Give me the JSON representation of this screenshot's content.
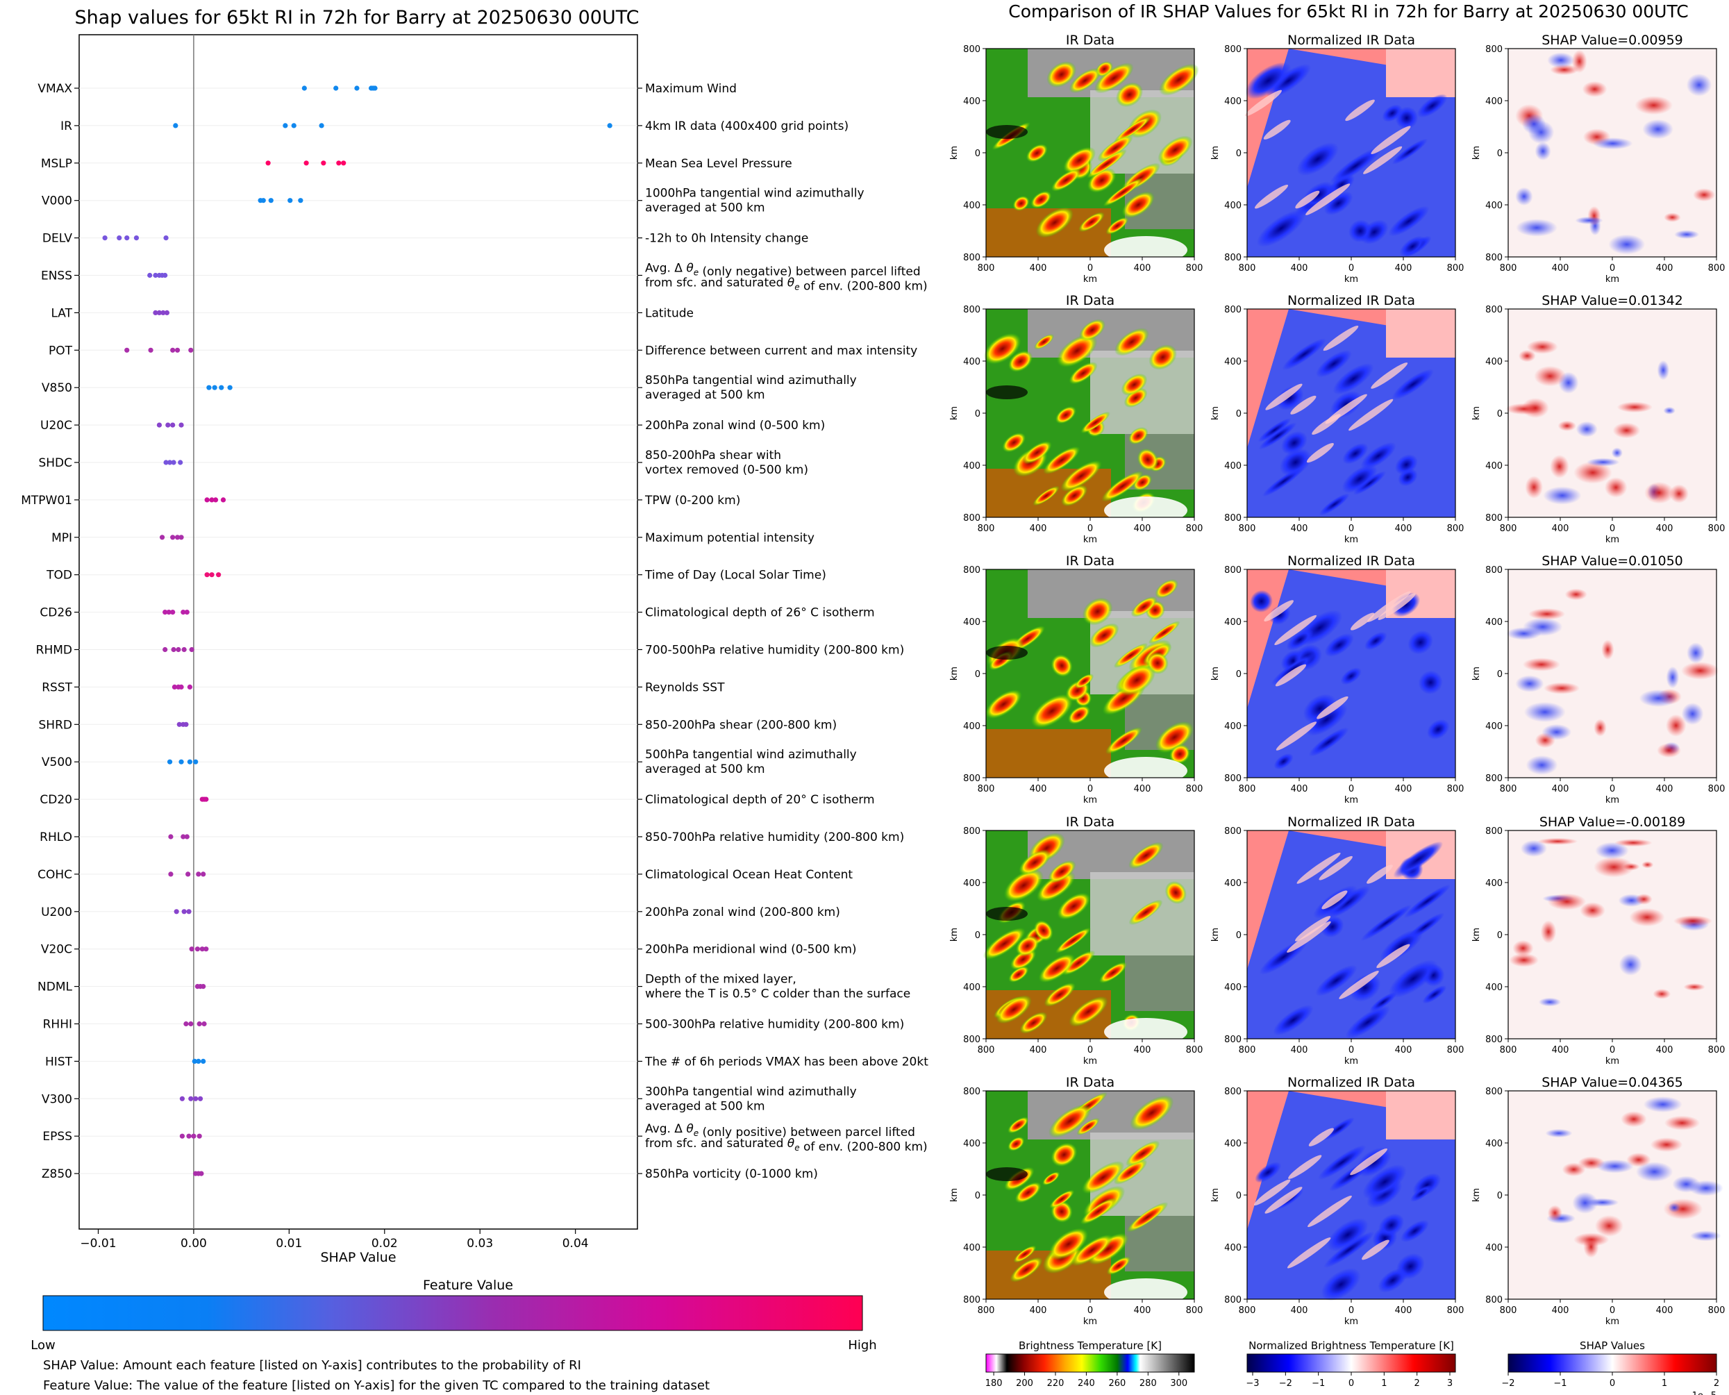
{
  "chart_data": [
    {
      "type": "scatter",
      "title": "Shap values for 65kt RI in 72h for Barry at 20250630 00UTC",
      "xlabel": "SHAP Value",
      "ylabel": "",
      "xlim": [
        -0.012,
        0.0465
      ],
      "x_ticks": [
        "−0.01",
        "0.00",
        "0.01",
        "0.02",
        "0.03",
        "0.04"
      ],
      "x_tick_values": [
        -0.01,
        0.0,
        0.01,
        0.02,
        0.03,
        0.04
      ],
      "features": [
        {
          "name": "VMAX",
          "desc": [
            "Maximum Wind"
          ],
          "color": "#1188ee",
          "values": [
            0.0116,
            0.0149,
            0.0171,
            0.0186,
            0.0188,
            0.019
          ]
        },
        {
          "name": "IR",
          "desc": [
            "4km IR data (400x400 grid points)"
          ],
          "color": "#1188ee",
          "values": [
            -0.0019,
            0.0096,
            0.0105,
            0.0134,
            0.0436
          ]
        },
        {
          "name": "MSLP",
          "desc": [
            "Mean Sea Level Pressure"
          ],
          "color": "#ff0066",
          "values": [
            0.0078,
            0.0118,
            0.0136,
            0.0152,
            0.0157
          ]
        },
        {
          "name": "V000",
          "desc": [
            "1000hPa tangential wind azimuthally",
            "averaged at 500 km"
          ],
          "color": "#1188ee",
          "values": [
            0.007,
            0.0073,
            0.0081,
            0.0101,
            0.0112
          ]
        },
        {
          "name": "DELV",
          "desc": [
            "-12h to 0h Intensity change"
          ],
          "color": "#7755dd",
          "values": [
            -0.0093,
            -0.0078,
            -0.007,
            -0.006,
            -0.0029
          ]
        },
        {
          "name": "ENSS",
          "desc": [
            "Avg. Δ θe (only negative) between parcel lifted",
            "from sfc. and saturated θe of env. (200-800 km)"
          ],
          "color": "#7755dd",
          "values": [
            -0.0046,
            -0.004,
            -0.0036,
            -0.0033,
            -0.003
          ]
        },
        {
          "name": "LAT",
          "desc": [
            "Latitude"
          ],
          "color": "#8844cc",
          "values": [
            -0.004,
            -0.0036,
            -0.0032,
            -0.0028
          ]
        },
        {
          "name": "POT",
          "desc": [
            "Difference between current and max intensity"
          ],
          "color": "#aa2faa",
          "values": [
            -0.007,
            -0.0045,
            -0.0022,
            -0.0017,
            -0.0003
          ]
        },
        {
          "name": "V850",
          "desc": [
            "850hPa tangential wind azimuthally",
            "averaged at 500 km"
          ],
          "color": "#1188ee",
          "values": [
            0.0016,
            0.0022,
            0.0029,
            0.0038
          ]
        },
        {
          "name": "U20C",
          "desc": [
            "200hPa zonal wind (0-500 km)"
          ],
          "color": "#8844cc",
          "values": [
            -0.0036,
            -0.0027,
            -0.0022,
            -0.0013
          ]
        },
        {
          "name": "SHDC",
          "desc": [
            "850-200hPa shear with",
            "vortex removed (0-500 km)"
          ],
          "color": "#7755dd",
          "values": [
            -0.0029,
            -0.0025,
            -0.0021,
            -0.0014
          ]
        },
        {
          "name": "MTPW01",
          "desc": [
            "TPW (0-200 km)"
          ],
          "color": "#cc1199",
          "values": [
            0.0014,
            0.0019,
            0.0023,
            0.0031
          ]
        },
        {
          "name": "MPI",
          "desc": [
            "Maximum potential intensity"
          ],
          "color": "#aa2faa",
          "values": [
            -0.0033,
            -0.0022,
            -0.0017,
            -0.0013
          ]
        },
        {
          "name": "TOD",
          "desc": [
            "Time of Day (Local Solar Time)"
          ],
          "color": "#ee1177",
          "values": [
            0.0014,
            0.0019,
            0.0026
          ]
        },
        {
          "name": "CD26",
          "desc": [
            "Climatological depth of 26° C isotherm"
          ],
          "color": "#bb22aa",
          "values": [
            -0.003,
            -0.0026,
            -0.0022,
            -0.0011,
            -0.0007
          ]
        },
        {
          "name": "RHMD",
          "desc": [
            "700-500hPa relative humidity (200-800 km)"
          ],
          "color": "#aa2faa",
          "values": [
            -0.003,
            -0.0021,
            -0.0016,
            -0.001,
            -0.0002
          ]
        },
        {
          "name": "RSST",
          "desc": [
            "Reynolds SST"
          ],
          "color": "#bb22aa",
          "values": [
            -0.002,
            -0.0016,
            -0.0013,
            -0.0004
          ]
        },
        {
          "name": "SHRD",
          "desc": [
            "850-200hPa shear (200-800 km)"
          ],
          "color": "#8844cc",
          "values": [
            -0.0015,
            -0.0011,
            -0.0008
          ]
        },
        {
          "name": "V500",
          "desc": [
            "500hPa tangential wind azimuthally",
            "averaged at 500 km"
          ],
          "color": "#1188ee",
          "values": [
            -0.0025,
            -0.0013,
            -0.0004,
            0.0002
          ]
        },
        {
          "name": "CD20",
          "desc": [
            "Climatological depth of 20° C isotherm"
          ],
          "color": "#cc1199",
          "values": [
            0.0009,
            0.0011,
            0.0013
          ]
        },
        {
          "name": "RHLO",
          "desc": [
            "850-700hPa relative humidity (200-800 km)"
          ],
          "color": "#aa2faa",
          "values": [
            -0.0024,
            -0.0011,
            -0.0007
          ]
        },
        {
          "name": "COHC",
          "desc": [
            "Climatological Ocean Heat Content"
          ],
          "color": "#aa2faa",
          "values": [
            -0.0024,
            -0.0006,
            0.0005,
            0.001
          ]
        },
        {
          "name": "U200",
          "desc": [
            "200hPa zonal wind (200-800 km)"
          ],
          "color": "#8844cc",
          "values": [
            -0.0018,
            -0.001,
            -0.0005
          ]
        },
        {
          "name": "V20C",
          "desc": [
            "200hPa meridional wind (0-500 km)"
          ],
          "color": "#aa2faa",
          "values": [
            -0.0002,
            0.0004,
            0.0009,
            0.0013
          ]
        },
        {
          "name": "NDML",
          "desc": [
            "Depth of the mixed layer,",
            "where the T is 0.5° C colder than the surface"
          ],
          "color": "#aa2faa",
          "values": [
            0.0004,
            0.0007,
            0.001
          ]
        },
        {
          "name": "RHHI",
          "desc": [
            "500-300hPa relative humidity (200-800 km)"
          ],
          "color": "#aa2faa",
          "values": [
            -0.0008,
            -0.0003,
            0.0006,
            0.0011
          ]
        },
        {
          "name": "HIST",
          "desc": [
            "The # of 6h periods VMAX has been above 20kt"
          ],
          "color": "#1188ee",
          "values": [
            0.0001,
            0.0005,
            0.001
          ]
        },
        {
          "name": "V300",
          "desc": [
            "300hPa tangential wind azimuthally",
            "averaged at 500 km"
          ],
          "color": "#8844cc",
          "values": [
            -0.0012,
            -0.0003,
            0.0002,
            0.0007
          ]
        },
        {
          "name": "EPSS",
          "desc": [
            "Avg. Δ θe (only positive) between parcel lifted",
            "from sfc. and saturated θe of env. (200-800 km)"
          ],
          "color": "#aa2faa",
          "values": [
            -0.0012,
            -0.0005,
            0.0,
            0.0006
          ]
        },
        {
          "name": "Z850",
          "desc": [
            "850hPa vorticity (0-1000 km)"
          ],
          "color": "#aa2faa",
          "values": [
            0.0002,
            0.0005,
            0.0008
          ]
        }
      ]
    },
    {
      "type": "heatmap",
      "title": "Comparison of IR SHAP Values for 65kt RI in 72h for Barry at 20250630 00UTC",
      "column_titles": [
        "IR Data",
        "Normalized IR Data"
      ],
      "shap_titles": [
        "SHAP Value=0.00959",
        "SHAP Value=0.01342",
        "SHAP Value=0.01050",
        "SHAP Value=-0.00189",
        "SHAP Value=0.04365"
      ],
      "axis_unit": "km",
      "axis_ticks": [
        "800",
        "400",
        "0",
        "400",
        "800"
      ],
      "colorbars": [
        {
          "label": "Brightness Temperature [K]",
          "ticks": [
            "180",
            "200",
            "220",
            "240",
            "260",
            "280",
            "300"
          ]
        },
        {
          "label": "Normalized Brightness Temperature [K]",
          "ticks": [
            "−3",
            "−2",
            "−1",
            "0",
            "1",
            "2",
            "3"
          ]
        },
        {
          "label": "SHAP Values",
          "ticks": [
            "−2",
            "−1",
            "0",
            "1",
            "2"
          ],
          "offset": "1e−5"
        }
      ]
    }
  ],
  "legend": {
    "title": "Feature Value",
    "low": "Low",
    "high": "High",
    "note1": "SHAP Value: Amount each feature [listed on Y-axis] contributes to the probability of RI",
    "note2": "Feature Value: The value of the feature [listed on Y-axis] for the given TC compared to the training dataset"
  },
  "colors": {
    "low": "#0088ff",
    "mid": "#8a33c0",
    "high": "#ff0052"
  }
}
